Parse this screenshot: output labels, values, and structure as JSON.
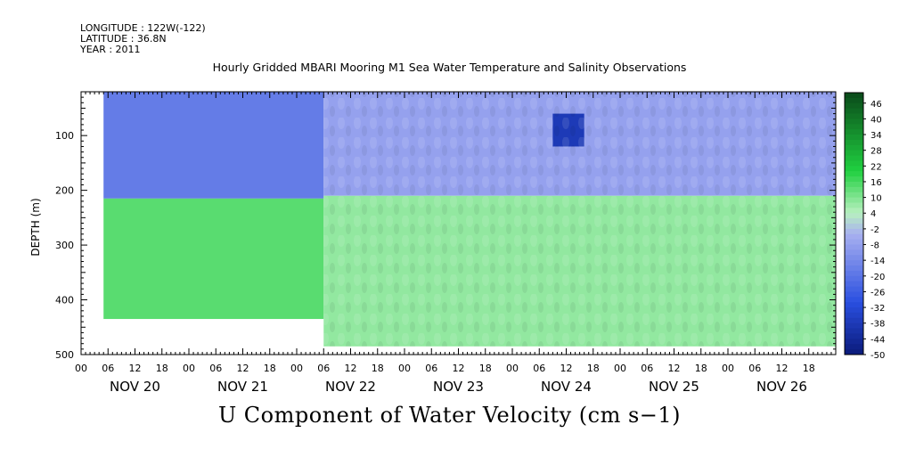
{
  "header": {
    "longitude": "LONGITUDE : 122W(-122)",
    "latitude": "LATITUDE : 36.8N",
    "year": "YEAR : 2011"
  },
  "chart_data": {
    "type": "heatmap",
    "title": "Hourly Gridded MBARI Mooring M1 Sea Water Temperature and Salinity Observations",
    "xlabel": "U Component of Water Velocity (cm s−1)",
    "ylabel": "DEPTH (m)",
    "ylim": [
      500,
      20
    ],
    "y_ticks": [
      100,
      200,
      300,
      400,
      500
    ],
    "y_tick_labels": [
      "100",
      "200",
      "300",
      "400",
      "500"
    ],
    "x_range_hours": [
      0,
      168
    ],
    "x_hour_ticks": [
      "00",
      "06",
      "12",
      "18",
      "00",
      "06",
      "12",
      "18",
      "00",
      "06",
      "12",
      "18",
      "00",
      "06",
      "12",
      "18",
      "00",
      "06",
      "12",
      "18",
      "00",
      "06",
      "12",
      "18",
      "00",
      "06",
      "12",
      "18"
    ],
    "x_date_labels": [
      "NOV 20",
      "NOV 21",
      "NOV 22",
      "NOV 23",
      "NOV 24",
      "NOV 25",
      "NOV 26"
    ],
    "colorbar": {
      "levels": [
        -50,
        -44,
        -38,
        -32,
        -26,
        -20,
        -14,
        -8,
        -2,
        4,
        10,
        16,
        22,
        28,
        34,
        40,
        46
      ],
      "labels": [
        "-50",
        "-44",
        "-38",
        "-32",
        "-26",
        "-20",
        "-14",
        "-8",
        "-2",
        "4",
        "10",
        "16",
        "22",
        "28",
        "34",
        "40",
        "46"
      ],
      "range": [
        -50,
        50
      ],
      "colors": {
        "deep_negative": "#0a1a7a",
        "negative": "#2a4fe0",
        "near_zero_negative": "#a8b0f0",
        "near_zero_positive": "#b8f0c0",
        "positive": "#20d040",
        "deep_positive": "#0a4a1a"
      }
    },
    "regions": [
      {
        "x_hours": [
          5,
          54
        ],
        "depth": [
          20,
          215
        ],
        "value": -18
      },
      {
        "x_hours": [
          5,
          54
        ],
        "depth": [
          215,
          435
        ],
        "value": 14
      },
      {
        "x_hours": [
          54,
          168
        ],
        "depth": [
          20,
          210
        ],
        "value": -8
      },
      {
        "x_hours": [
          54,
          168
        ],
        "depth": [
          210,
          485
        ],
        "value": 8
      },
      {
        "x_hours": [
          105,
          112
        ],
        "depth": [
          60,
          120
        ],
        "value": -38
      }
    ]
  }
}
